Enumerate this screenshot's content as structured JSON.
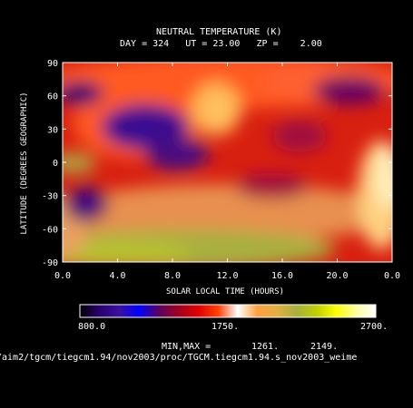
{
  "chart_data": {
    "type": "heatmap",
    "title": "NEUTRAL TEMPERATURE (K)",
    "subtitle": "DAY = 324   UT = 23.00   ZP =    2.00",
    "xlabel": "SOLAR LOCAL TIME (HOURS)",
    "ylabel": "LATITUDE (DEGREES GEOGRAPHIC)",
    "x_ticks": [
      "0.0",
      "4.0",
      "8.0",
      "12.0",
      "16.0",
      "20.0",
      "0.0"
    ],
    "y_ticks": [
      "90",
      "60",
      "30",
      "0",
      "-30",
      "-60",
      "-90"
    ],
    "xlim": [
      0,
      24
    ],
    "ylim": [
      -90,
      90
    ],
    "colorbar": {
      "min_label": "800.0",
      "mid_label": "1750.",
      "max_label": "2700.",
      "range": [
        800,
        2700
      ],
      "stops": [
        "#000000",
        "#2a0070",
        "#3a10a0",
        "#0000ff",
        "#5a0060",
        "#a00020",
        "#e00000",
        "#ff4000",
        "#ffffff",
        "#ffa040",
        "#e0b040",
        "#a8b040",
        "#c0d000",
        "#ffff00",
        "#ffffa0",
        "#ffffff"
      ]
    },
    "minmax_label": "MIN,MAX =",
    "min_value": "1261.",
    "max_value": "2149.",
    "source_path": "/aim2/tgcm/tiegcm1.94/nov2003/proc/TGCM.tiegcm1.94.s_nov2003_weime"
  }
}
